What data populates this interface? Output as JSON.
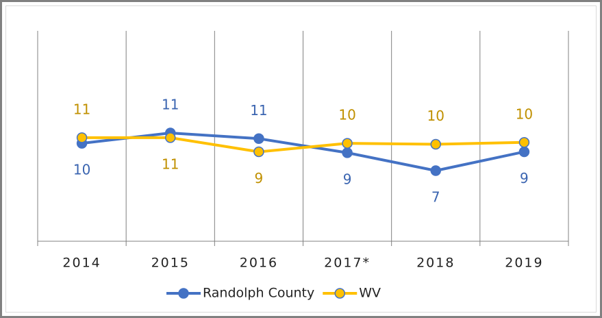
{
  "chart_data": {
    "type": "line",
    "categories": [
      "2014",
      "2015",
      "2016",
      "2017*",
      "2018",
      "2019"
    ],
    "series": [
      {
        "name": "Randolph County",
        "color": "#4472c4",
        "values": [
          10.3,
          11.4,
          10.8,
          9.3,
          7.4,
          9.4
        ],
        "value_labels": [
          "10",
          "11",
          "11",
          "9",
          "7",
          "9"
        ]
      },
      {
        "name": "WV",
        "color": "#ffc000",
        "values": [
          10.9,
          10.9,
          9.4,
          10.3,
          10.2,
          10.4
        ],
        "value_labels": [
          "11",
          "11",
          "9",
          "10",
          "10",
          "10"
        ]
      }
    ],
    "legend": "bottom"
  }
}
